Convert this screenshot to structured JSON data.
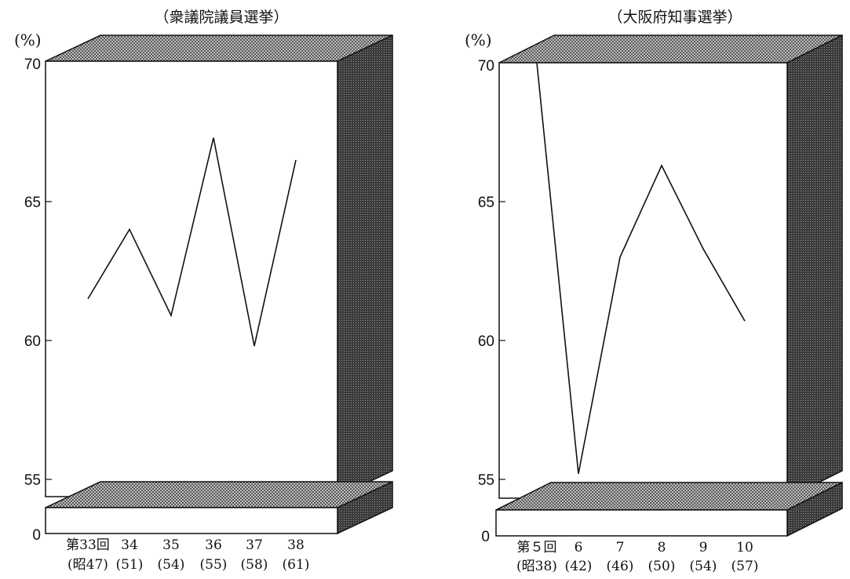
{
  "chart_data": [
    {
      "type": "line",
      "title": "（衆議院議員選挙）",
      "ylabel": "(%)",
      "ylim": [
        55,
        70
      ],
      "yticks": [
        "70",
        "65",
        "60",
        "55"
      ],
      "y_zero_label": "0",
      "categories": [
        "第33回",
        "34",
        "35",
        "36",
        "37",
        "38"
      ],
      "sub_categories": [
        "(昭47)",
        "(51)",
        "(54)",
        "(55)",
        "(58)",
        "(61)"
      ],
      "values": [
        61.5,
        64.0,
        60.9,
        67.3,
        59.8,
        66.5
      ],
      "grid": false
    },
    {
      "type": "line",
      "title": "（大阪府知事選挙）",
      "ylabel": "(%)",
      "ylim": [
        55,
        70
      ],
      "yticks": [
        "70",
        "65",
        "60",
        "55"
      ],
      "y_zero_label": "0",
      "categories": [
        "第５回",
        "6",
        "7",
        "8",
        "9",
        "10"
      ],
      "sub_categories": [
        "(昭38)",
        "(42)",
        "(46)",
        "(50)",
        "(54)",
        "(57)"
      ],
      "values": [
        70.0,
        55.2,
        63.0,
        66.3,
        63.3,
        60.7
      ],
      "grid": false
    }
  ],
  "colors": {
    "line": "#111111",
    "box_side": "#444444",
    "box_top": "#9a9a9a"
  }
}
